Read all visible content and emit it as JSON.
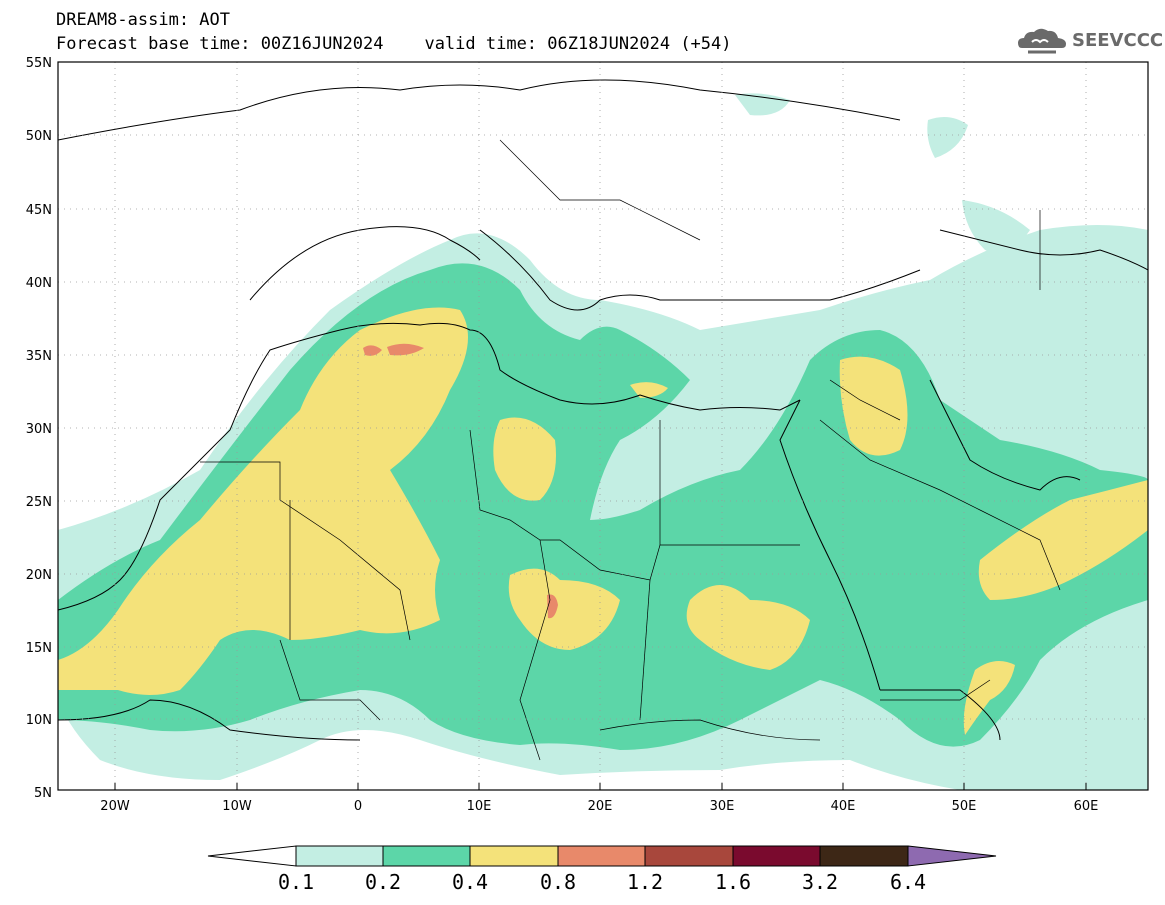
{
  "header": {
    "model_line": "DREAM8-assim: AOT",
    "time_line": "Forecast base time: 00Z16JUN2024    valid time: 06Z18JUN2024 (+54)"
  },
  "logo": {
    "text": "SEEVCCC",
    "icon": "cloud-icon"
  },
  "map": {
    "lat_labels": [
      "55N",
      "50N",
      "45N",
      "40N",
      "35N",
      "30N",
      "25N",
      "20N",
      "15N",
      "10N",
      "5N"
    ],
    "lon_labels": [
      "20W",
      "10W",
      "0",
      "10E",
      "20E",
      "30E",
      "40E",
      "50E",
      "60E"
    ],
    "extent": {
      "lon_min": -25,
      "lon_max": 65,
      "lat_min": 5,
      "lat_max": 55
    }
  },
  "colorbar": {
    "levels": [
      "0.1",
      "0.2",
      "0.4",
      "0.8",
      "1.2",
      "1.6",
      "3.2",
      "6.4"
    ],
    "colors": [
      "#ffffff",
      "#c3eee3",
      "#5cd6a8",
      "#f4e27a",
      "#e8896a",
      "#a8473c",
      "#7a0a2e",
      "#3d2716",
      "#8e6ab0"
    ]
  }
}
